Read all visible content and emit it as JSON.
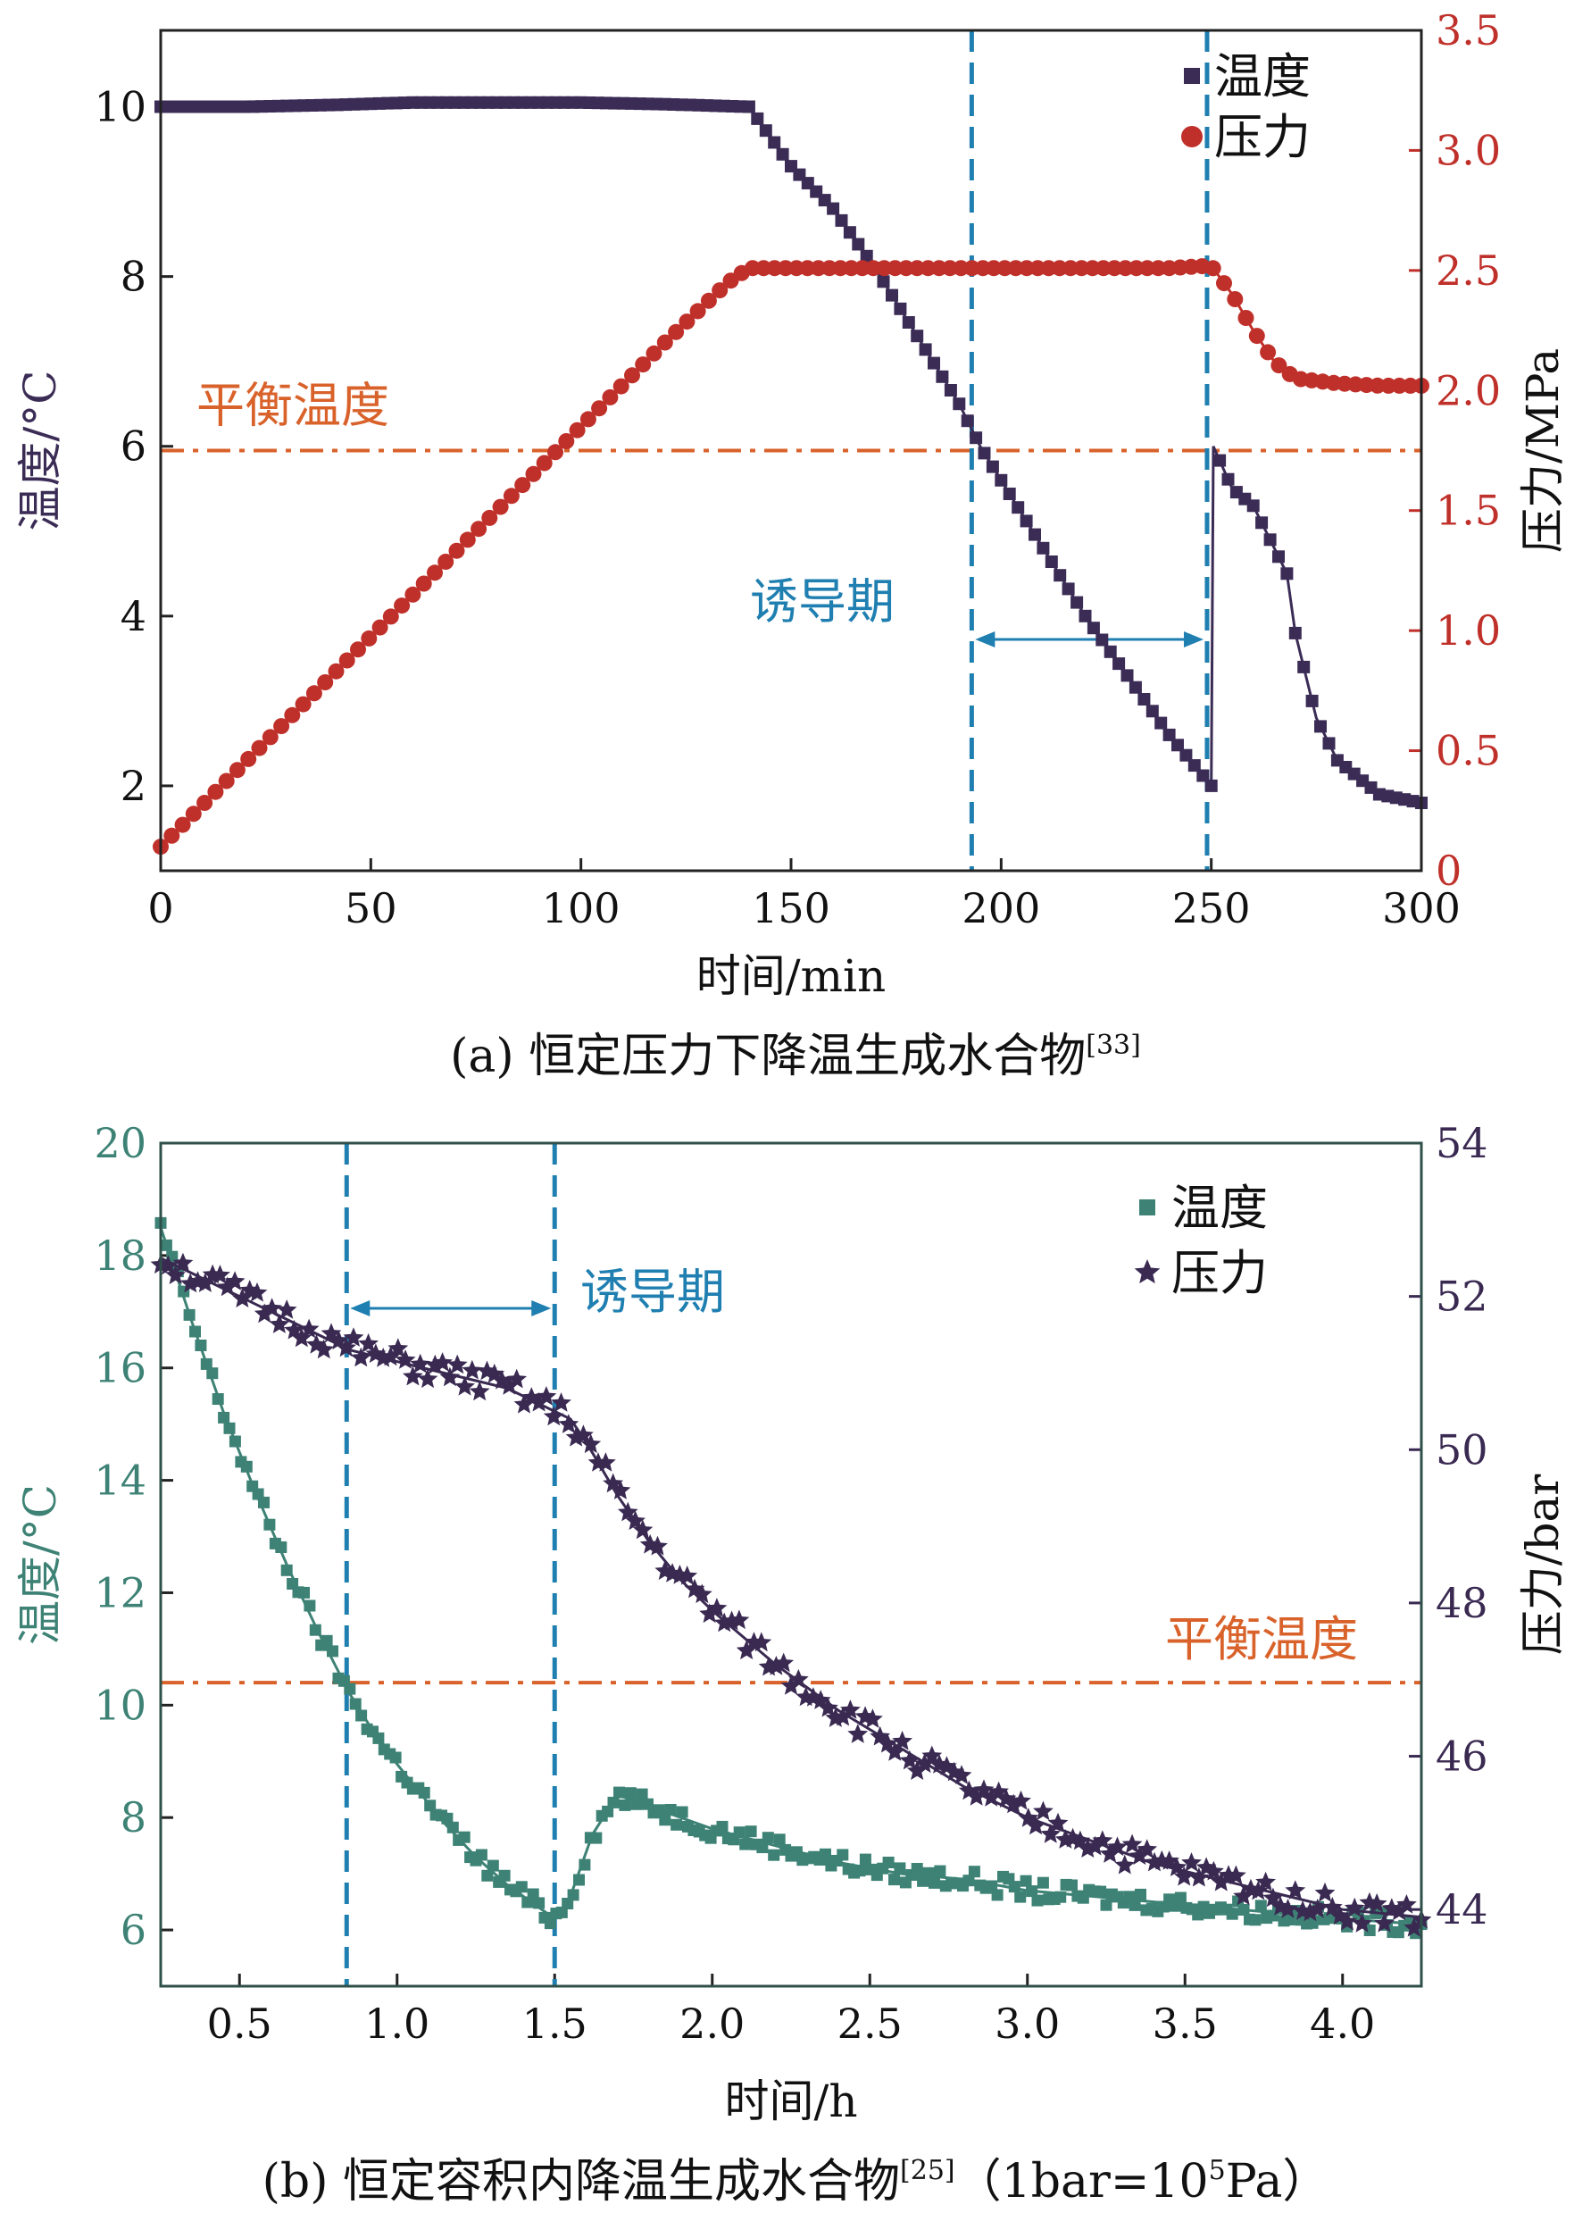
{
  "colors": {
    "temp_a": "#3b2c56",
    "pressure_a": "#c0302a",
    "equilibrium": "#d9622b",
    "induction": "#1f7fb0",
    "temp_b": "#3d8275",
    "pressure_b": "#3a2a52",
    "axis": "#222222"
  },
  "chart_data": [
    {
      "id": "a",
      "type": "line",
      "caption": "(a) 恒定压力下降温生成水合物",
      "caption_ref": "[33]",
      "xlabel": "时间/min",
      "ylabel_left": "温度/°C",
      "ylabel_right": "压力/MPa",
      "xlim": [
        0,
        300
      ],
      "ylim_left": [
        1,
        10.9
      ],
      "ylim_right": [
        0,
        3.5
      ],
      "xticks": [
        0,
        50,
        100,
        150,
        200,
        250,
        300
      ],
      "xtick_labels": [
        "0",
        "50",
        "100",
        "150",
        "200",
        "250",
        "300"
      ],
      "yticks_left": [
        2,
        4,
        6,
        8,
        10
      ],
      "ytick_labels_left": [
        "2",
        "4",
        "6",
        "8",
        "10"
      ],
      "yticks_right": [
        0,
        0.5,
        1.0,
        1.5,
        2.0,
        2.5,
        3.0,
        3.5
      ],
      "ytick_labels_right": [
        "0",
        "0.5",
        "1.0",
        "1.5",
        "2.0",
        "2.5",
        "3.0",
        "3.5"
      ],
      "legend_position": "top-right",
      "series": [
        {
          "name": "温度",
          "axis": "left",
          "marker": "square",
          "x": [
            0,
            20,
            40,
            60,
            80,
            100,
            120,
            140,
            150,
            160,
            170,
            180,
            190,
            195,
            200,
            210,
            220,
            230,
            240,
            250,
            250.5,
            255,
            260,
            265,
            268,
            270,
            275,
            280,
            290,
            300
          ],
          "y": [
            10,
            10,
            10.02,
            10.05,
            10.05,
            10.05,
            10.03,
            10,
            9.3,
            8.8,
            8.1,
            7.3,
            6.5,
            6.0,
            5.6,
            4.8,
            4.0,
            3.3,
            2.6,
            2.0,
            6.0,
            5.5,
            5.3,
            4.8,
            4.5,
            3.8,
            2.8,
            2.3,
            1.9,
            1.8
          ]
        },
        {
          "name": "压力",
          "axis": "right",
          "marker": "circle",
          "x": [
            0,
            20,
            40,
            60,
            80,
            100,
            120,
            135,
            140,
            160,
            180,
            200,
            220,
            240,
            250,
            255,
            260,
            265,
            270,
            280,
            290,
            300
          ],
          "y": [
            0.1,
            0.45,
            0.8,
            1.15,
            1.5,
            1.85,
            2.2,
            2.45,
            2.51,
            2.51,
            2.51,
            2.51,
            2.51,
            2.51,
            2.52,
            2.4,
            2.25,
            2.12,
            2.05,
            2.03,
            2.02,
            2.02
          ]
        }
      ],
      "equilibrium_temperature": 5.95,
      "equilibrium_label": "平衡温度",
      "induction_start": 193,
      "induction_end": 249,
      "induction_label": "诱导期"
    },
    {
      "id": "b",
      "type": "scatter",
      "caption": "(b) 恒定容积内降温生成水合物",
      "caption_ref": "[25]",
      "caption_note_prefix": "（1bar=10",
      "caption_note_sup": "5",
      "caption_note_suffix": "Pa）",
      "xlabel": "时间/h",
      "ylabel_left": "温度/°C",
      "ylabel_right": "压力/bar",
      "xlim": [
        0.25,
        4.25
      ],
      "ylim_left": [
        5,
        20
      ],
      "ylim_right": [
        43,
        54
      ],
      "xticks": [
        0.5,
        1.0,
        1.5,
        2.0,
        2.5,
        3.0,
        3.5,
        4.0
      ],
      "xtick_labels": [
        "0.5",
        "1.0",
        "1.5",
        "2.0",
        "2.5",
        "3.0",
        "3.5",
        "4.0"
      ],
      "yticks_left": [
        6,
        8,
        10,
        12,
        14,
        16,
        18,
        20
      ],
      "ytick_labels_left": [
        "6",
        "8",
        "10",
        "12",
        "14",
        "16",
        "18",
        "20"
      ],
      "yticks_right": [
        44,
        46,
        48,
        50,
        52,
        54
      ],
      "ytick_labels_right": [
        "44",
        "46",
        "48",
        "50",
        "52",
        "54"
      ],
      "legend_position": "top-right",
      "series": [
        {
          "name": "温度",
          "axis": "left",
          "marker": "square",
          "x": [
            0.25,
            0.35,
            0.45,
            0.55,
            0.65,
            0.75,
            0.85,
            0.95,
            1.05,
            1.15,
            1.25,
            1.35,
            1.45,
            1.5,
            1.55,
            1.62,
            1.7,
            1.8,
            2.0,
            2.2,
            2.4,
            2.6,
            2.8,
            3.0,
            3.2,
            3.4,
            3.6,
            3.8,
            4.0,
            4.25
          ],
          "y": [
            18.5,
            16.8,
            15.2,
            13.8,
            12.5,
            11.3,
            10.2,
            9.3,
            8.6,
            7.9,
            7.3,
            6.8,
            6.4,
            6.2,
            6.6,
            7.7,
            8.4,
            8.2,
            7.8,
            7.5,
            7.2,
            7.0,
            6.9,
            6.7,
            6.6,
            6.5,
            6.4,
            6.3,
            6.2,
            6.1
          ]
        },
        {
          "name": "压力",
          "axis": "right",
          "marker": "star",
          "x": [
            0.25,
            0.35,
            0.45,
            0.55,
            0.65,
            0.75,
            0.85,
            0.95,
            1.05,
            1.15,
            1.25,
            1.35,
            1.45,
            1.5,
            1.55,
            1.6,
            1.7,
            1.8,
            1.9,
            2.0,
            2.2,
            2.4,
            2.6,
            2.8,
            3.0,
            3.2,
            3.4,
            3.6,
            3.8,
            4.0,
            4.25
          ],
          "y": [
            52.5,
            52.3,
            52.1,
            51.9,
            51.7,
            51.5,
            51.3,
            51.2,
            51.1,
            51.0,
            50.9,
            50.8,
            50.6,
            50.5,
            50.4,
            50.1,
            49.4,
            48.8,
            48.3,
            47.9,
            47.2,
            46.6,
            46.1,
            45.6,
            45.2,
            44.9,
            44.6,
            44.4,
            44.2,
            44.0,
            43.9
          ]
        }
      ],
      "equilibrium_temperature": 10.4,
      "equilibrium_label": "平衡温度",
      "induction_start": 0.84,
      "induction_end": 1.5,
      "induction_label": "诱导期"
    }
  ]
}
